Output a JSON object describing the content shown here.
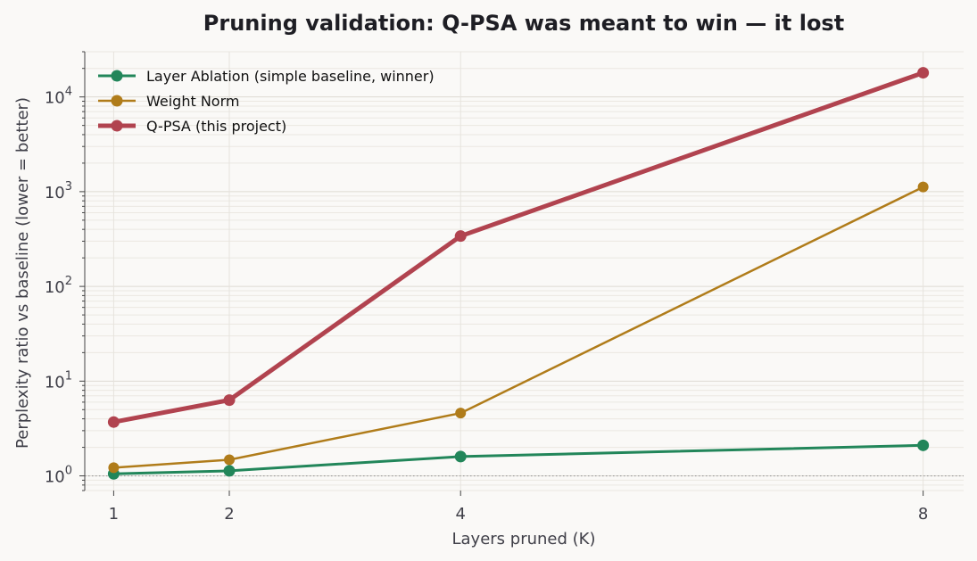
{
  "chart_data": {
    "type": "line",
    "title": "Pruning validation: Q-PSA was meant to win — it lost",
    "xlabel": "Layers pruned (K)",
    "ylabel": "Perplexity ratio vs baseline  (lower = better)",
    "x": [
      1,
      2,
      4,
      8
    ],
    "x_tick_labels": [
      "1",
      "2",
      "4",
      "8"
    ],
    "y_scale": "log",
    "ylim": [
      0.7,
      30000
    ],
    "y_ticks": [
      {
        "base": "10",
        "exp": "0",
        "value": 1
      },
      {
        "base": "10",
        "exp": "1",
        "value": 10
      },
      {
        "base": "10",
        "exp": "2",
        "value": 100
      },
      {
        "base": "10",
        "exp": "3",
        "value": 1000
      },
      {
        "base": "10",
        "exp": "4",
        "value": 10000
      }
    ],
    "reference_line": {
      "y": 1,
      "style": "dotted"
    },
    "grid": true,
    "legend_position": "top-left",
    "series": [
      {
        "name": "Layer Ablation (simple baseline, winner)",
        "color": "#22865a",
        "values": [
          1.05,
          1.13,
          1.6,
          2.1
        ],
        "emphasis": "normal"
      },
      {
        "name": "Weight Norm",
        "color": "#b07c1a",
        "values": [
          1.22,
          1.48,
          4.6,
          1120
        ],
        "emphasis": "thin"
      },
      {
        "name": "Q-PSA (this project)",
        "color": "#b1434f",
        "values": [
          3.7,
          6.3,
          340,
          18000
        ],
        "emphasis": "bold"
      }
    ]
  }
}
